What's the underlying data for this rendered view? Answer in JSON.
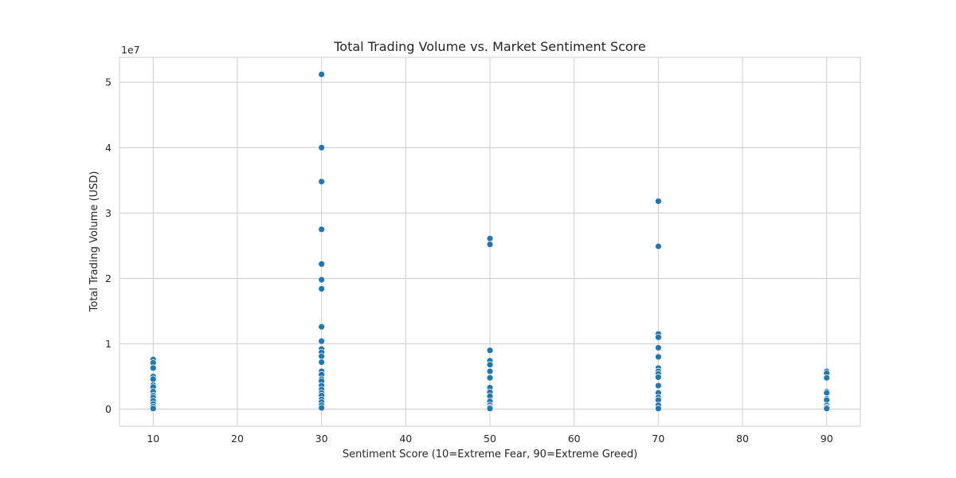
{
  "chart_data": {
    "type": "scatter",
    "title": "Total Trading Volume vs. Market Sentiment Score",
    "xlabel": "Sentiment Score (10=Extreme Fear, 90=Extreme Greed)",
    "ylabel": "Total Trading Volume (USD)",
    "y_offset_label": "1e7",
    "xlim": [
      6,
      94
    ],
    "ylim": [
      -2600000,
      53800000
    ],
    "x_ticks": [
      10,
      20,
      30,
      40,
      50,
      60,
      70,
      80,
      90
    ],
    "x_tick_labels": [
      "10",
      "20",
      "30",
      "40",
      "50",
      "60",
      "70",
      "80",
      "90"
    ],
    "y_ticks": [
      0,
      10000000,
      20000000,
      30000000,
      40000000,
      50000000
    ],
    "y_tick_labels": [
      "0",
      "1",
      "2",
      "3",
      "4",
      "5"
    ],
    "grid": true,
    "marker_color": "#1f77b4",
    "points": [
      [
        10,
        7600000
      ],
      [
        10,
        7100000
      ],
      [
        10,
        6300000
      ],
      [
        10,
        5000000
      ],
      [
        10,
        4600000
      ],
      [
        10,
        3700000
      ],
      [
        10,
        3400000
      ],
      [
        10,
        2700000
      ],
      [
        10,
        2100000
      ],
      [
        10,
        1800000
      ],
      [
        10,
        1300000
      ],
      [
        10,
        800000
      ],
      [
        10,
        400000
      ],
      [
        10,
        100000
      ],
      [
        30,
        51200000
      ],
      [
        30,
        40000000
      ],
      [
        30,
        34800000
      ],
      [
        30,
        27500000
      ],
      [
        30,
        22200000
      ],
      [
        30,
        19800000
      ],
      [
        30,
        18400000
      ],
      [
        30,
        12600000
      ],
      [
        30,
        10400000
      ],
      [
        30,
        9200000
      ],
      [
        30,
        8700000
      ],
      [
        30,
        8100000
      ],
      [
        30,
        7200000
      ],
      [
        30,
        5800000
      ],
      [
        30,
        5300000
      ],
      [
        30,
        4600000
      ],
      [
        30,
        4300000
      ],
      [
        30,
        3600000
      ],
      [
        30,
        3000000
      ],
      [
        30,
        2500000
      ],
      [
        30,
        2100000
      ],
      [
        30,
        1500000
      ],
      [
        30,
        1100000
      ],
      [
        30,
        600000
      ],
      [
        30,
        200000
      ],
      [
        50,
        26100000
      ],
      [
        50,
        25200000
      ],
      [
        50,
        9000000
      ],
      [
        50,
        7400000
      ],
      [
        50,
        6800000
      ],
      [
        50,
        5800000
      ],
      [
        50,
        4800000
      ],
      [
        50,
        3300000
      ],
      [
        50,
        2600000
      ],
      [
        50,
        2000000
      ],
      [
        50,
        1200000
      ],
      [
        50,
        600000
      ],
      [
        50,
        300000
      ],
      [
        50,
        100000
      ],
      [
        70,
        31800000
      ],
      [
        70,
        24900000
      ],
      [
        70,
        11500000
      ],
      [
        70,
        11000000
      ],
      [
        70,
        9400000
      ],
      [
        70,
        8000000
      ],
      [
        70,
        6300000
      ],
      [
        70,
        5800000
      ],
      [
        70,
        5400000
      ],
      [
        70,
        4900000
      ],
      [
        70,
        3600000
      ],
      [
        70,
        2500000
      ],
      [
        70,
        1800000
      ],
      [
        70,
        1400000
      ],
      [
        70,
        600000
      ],
      [
        70,
        100000
      ],
      [
        90,
        5800000
      ],
      [
        90,
        5500000
      ],
      [
        90,
        4800000
      ],
      [
        90,
        2700000
      ],
      [
        90,
        2500000
      ],
      [
        90,
        1600000
      ],
      [
        90,
        1400000
      ],
      [
        90,
        600000
      ],
      [
        90,
        300000
      ],
      [
        90,
        100000
      ]
    ]
  }
}
